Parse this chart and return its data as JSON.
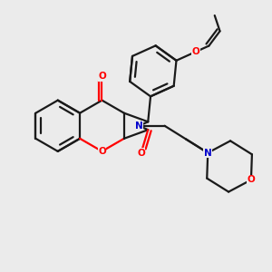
{
  "bg": "#ebebeb",
  "bc": "#1a1a1a",
  "oc": "#ff0000",
  "nc": "#0000cc",
  "lw": 1.6,
  "lw_thin": 1.4,
  "figsize": [
    3.0,
    3.0
  ],
  "dpi": 100,
  "xlim": [
    -1.2,
    2.0
  ],
  "ylim": [
    -1.6,
    1.6
  ]
}
